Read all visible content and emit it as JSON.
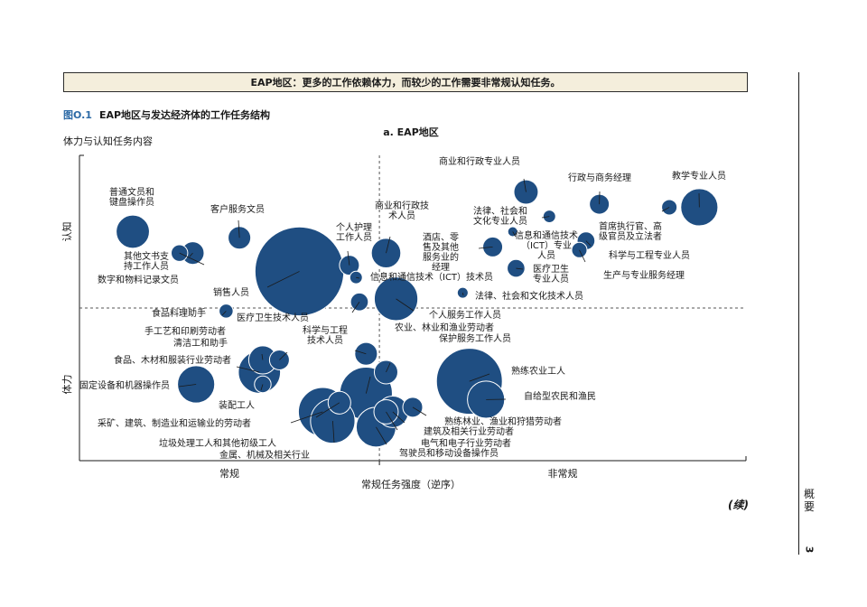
{
  "banner": "EAP地区：更多的工作依赖体力，而较少的工作需要非常规认知任务。",
  "figure": {
    "number": "图O.1",
    "title": "EAP地区与发达经济体的工作任务结构"
  },
  "continued": "(续)",
  "sidebar": {
    "text": "概要",
    "page_number": "3"
  },
  "colors": {
    "bubble": "#1f4e82",
    "banner_bg": "#f4eedc",
    "figure_number": "#2c6aa6"
  },
  "chart_data": {
    "type": "bubble",
    "panel_title": "a. EAP地区",
    "ylabel": "体力与认知任务内容",
    "xlabel": "常规任务强度（逆序）",
    "x_ticks": [
      "常规",
      "非常规"
    ],
    "y_ticks": [
      "认知",
      "体力"
    ],
    "x_range": [
      0,
      10
    ],
    "y_range": [
      0,
      10
    ],
    "x_divider": 4.5,
    "y_divider": 5.0,
    "grid": false,
    "legend": "none",
    "points": [
      {
        "label": "普通文员和键盘操作员",
        "x": 0.8,
        "y": 7.5,
        "size": 2.8
      },
      {
        "label": "客户服务文员",
        "x": 2.4,
        "y": 7.3,
        "size": 1.3
      },
      {
        "label": "其他文书支持工作人员",
        "x": 1.7,
        "y": 6.8,
        "size": 1.3
      },
      {
        "label": "数字和物料记录文员",
        "x": 1.5,
        "y": 6.8,
        "size": 0.7
      },
      {
        "label": "销售人员",
        "x": 3.3,
        "y": 6.2,
        "size": 20.0
      },
      {
        "label": "个人护理工作人员",
        "x": 4.05,
        "y": 6.4,
        "size": 1.0
      },
      {
        "label": "商业和行政技术人员",
        "x": 4.6,
        "y": 6.8,
        "size": 2.2
      },
      {
        "label": "信息和通信技术（ICT）技术员",
        "x": 4.15,
        "y": 6.0,
        "size": 0.4
      },
      {
        "label": "医疗卫生技术人员",
        "x": 4.2,
        "y": 5.2,
        "size": 0.8
      },
      {
        "label": "食品料理助手",
        "x": 2.2,
        "y": 4.9,
        "size": 0.5
      },
      {
        "label": "个人服务工作人员",
        "x": 4.75,
        "y": 5.3,
        "size": 4.8
      },
      {
        "label": "商业和行政专业人员",
        "x": 6.7,
        "y": 8.8,
        "size": 1.5
      },
      {
        "label": "行政与商务经理",
        "x": 7.8,
        "y": 8.4,
        "size": 1.0
      },
      {
        "label": "教学专业人员",
        "x": 9.3,
        "y": 8.3,
        "size": 3.5
      },
      {
        "label": "法律、社会和文化专业人员",
        "x": 7.05,
        "y": 8.0,
        "size": 0.4
      },
      {
        "label": "首席执行官、高级官员及立法者",
        "x": 8.85,
        "y": 8.3,
        "size": 0.6
      },
      {
        "label": "酒店、零售及其他服务业的经理",
        "x": 6.2,
        "y": 7.0,
        "size": 1.0
      },
      {
        "label": "信息和通信技术（ICT）专业人员",
        "x": 6.5,
        "y": 7.5,
        "size": 0.25
      },
      {
        "label": "科学与工程专业人员",
        "x": 7.6,
        "y": 7.2,
        "size": 0.8
      },
      {
        "label": "生产与专业服务经理",
        "x": 7.5,
        "y": 6.9,
        "size": 0.6
      },
      {
        "label": "医疗卫生专业人员",
        "x": 6.55,
        "y": 6.3,
        "size": 0.8
      },
      {
        "label": "法律、社会和文化技术人员",
        "x": 5.75,
        "y": 5.5,
        "size": 0.3
      },
      {
        "label": "手工艺和印刷劳动者",
        "x": 3.0,
        "y": 3.3,
        "size": 1.0
      },
      {
        "label": "清洁工和助手",
        "x": 2.75,
        "y": 3.3,
        "size": 2.0
      },
      {
        "label": "食品、木材和服装行业劳动者",
        "x": 2.7,
        "y": 2.9,
        "size": 4.5
      },
      {
        "label": "固定设备和机器操作员",
        "x": 1.75,
        "y": 2.5,
        "size": 3.5
      },
      {
        "label": "装配工人",
        "x": 2.75,
        "y": 2.5,
        "size": 0.7
      },
      {
        "label": "科学与工程技术人员",
        "x": 4.3,
        "y": 3.5,
        "size": 1.3
      },
      {
        "label": "保护服务工作人员",
        "x": 4.6,
        "y": 2.9,
        "size": 1.4
      },
      {
        "label": "农业、林业和渔业劳动者",
        "x": 4.3,
        "y": 2.2,
        "size": 7.0
      },
      {
        "label": "熟练农业工人",
        "x": 5.85,
        "y": 2.6,
        "size": 11.0
      },
      {
        "label": "自给型农民和渔民",
        "x": 6.1,
        "y": 2.0,
        "size": 3.5
      },
      {
        "label": "熟练林业、渔业和狩猎劳动者",
        "x": 5.0,
        "y": 1.75,
        "size": 1.0
      },
      {
        "label": "建筑及相关行业劳动者",
        "x": 4.7,
        "y": 1.6,
        "size": 2.5
      },
      {
        "label": "电气和电子行业劳动者",
        "x": 4.6,
        "y": 1.6,
        "size": 1.5
      },
      {
        "label": "驾驶员和移动设备操作员",
        "x": 4.45,
        "y": 1.1,
        "size": 4.0
      },
      {
        "label": "采矿、建筑、制造业和运输业的劳动者",
        "x": 3.65,
        "y": 1.6,
        "size": 6.0
      },
      {
        "label": "垃圾处理工人和其他初级工人",
        "x": 3.9,
        "y": 1.9,
        "size": 1.3
      },
      {
        "label": "金属、机械及相关行业",
        "x": 3.8,
        "y": 1.3,
        "size": 5.0
      }
    ]
  }
}
